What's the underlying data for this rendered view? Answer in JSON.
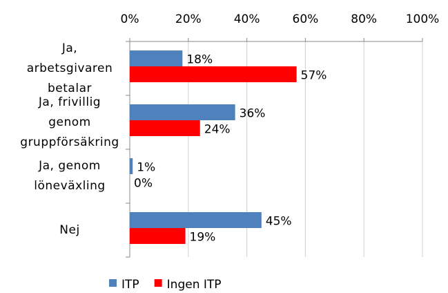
{
  "chart_data": {
    "type": "bar",
    "orientation": "horizontal",
    "categories": [
      "Ja, arbetsgivaren betalar",
      "Ja, frivillig genom gruppförsäkring",
      "Ja, genom löneväxling",
      "Nej"
    ],
    "series": [
      {
        "name": "ITP",
        "color": "#4f81bd",
        "values": [
          18,
          36,
          1,
          45
        ],
        "value_labels": [
          "18%",
          "36%",
          "1%",
          "45%"
        ]
      },
      {
        "name": "Ingen ITP",
        "color": "#ff0000",
        "values": [
          57,
          24,
          0,
          19
        ],
        "value_labels": [
          "57%",
          "24%",
          "0%",
          "19%"
        ]
      }
    ],
    "xlim": [
      0,
      100
    ],
    "xticks": [
      {
        "value": 0,
        "label": "0%"
      },
      {
        "value": 20,
        "label": "20%"
      },
      {
        "value": 40,
        "label": "40%"
      },
      {
        "value": 60,
        "label": "60%"
      },
      {
        "value": 80,
        "label": "80%"
      },
      {
        "value": 100,
        "label": "100%"
      }
    ],
    "grid": true,
    "legend": "bottom"
  }
}
